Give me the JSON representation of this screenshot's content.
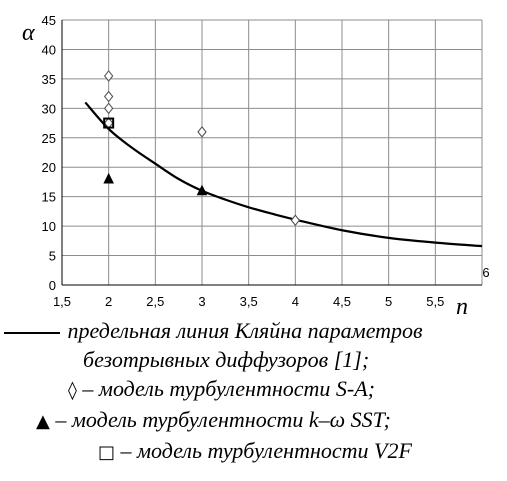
{
  "chart_data": {
    "type": "scatter",
    "xlabel": "n",
    "ylabel": "α",
    "xlim": [
      1.5,
      6
    ],
    "ylim": [
      0,
      45
    ],
    "x_ticks": [
      "1,5",
      "2",
      "2,5",
      "3",
      "3,5",
      "4",
      "4,5",
      "5",
      "5,5",
      "6"
    ],
    "y_ticks": [
      "0",
      "5",
      "10",
      "15",
      "20",
      "25",
      "30",
      "35",
      "40",
      "45"
    ],
    "grid": true,
    "curve": {
      "x": [
        1.75,
        2.0,
        2.25,
        2.5,
        2.75,
        3.0,
        3.25,
        3.5,
        3.75,
        4.0,
        4.5,
        5.0,
        5.5,
        6.0
      ],
      "y": [
        31.0,
        26.5,
        23.3,
        20.6,
        18.0,
        16.0,
        14.5,
        13.2,
        12.1,
        11.1,
        9.3,
        8.0,
        7.2,
        6.6
      ]
    },
    "series": [
      {
        "marker": "diamond",
        "x": [
          2,
          2,
          2,
          2,
          3,
          4
        ],
        "y": [
          35.5,
          32,
          30,
          27.5,
          26,
          11
        ]
      },
      {
        "marker": "triangle",
        "x": [
          2,
          3
        ],
        "y": [
          18,
          16
        ]
      },
      {
        "marker": "square",
        "x": [
          2
        ],
        "y": [
          27.5
        ]
      }
    ]
  },
  "legend": {
    "line_text": "предельная линия Кляйна параметров",
    "line_text_cont": "безотрывных диффузоров [1];",
    "diamond_symbol": "◊",
    "diamond_text": " – модель турбулентности S-A;",
    "triangle_symbol": "▲",
    "triangle_text": " – модель турбулентности k–ω SST;",
    "square_symbol": "□",
    "square_text": " – модель турбулентности V2F"
  }
}
